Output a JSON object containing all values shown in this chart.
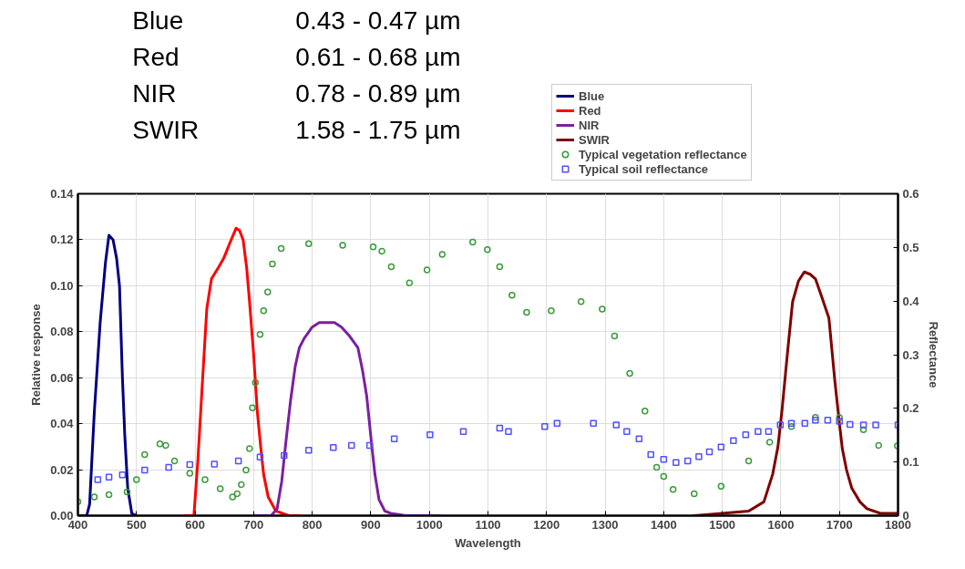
{
  "chart_data": {
    "type": "line",
    "annotations": [
      "Blue 0.43 - 0.47 µm",
      "Red 0.61 - 0.68 µm",
      "NIR 0.78 - 0.89 µm",
      "SWIR 1.58 - 1.75 µm"
    ],
    "xlabel": "Wavelength",
    "ylabel": "Relative response",
    "y2label": "Reflectance",
    "xlim": [
      400,
      1800
    ],
    "xticks": [
      400,
      500,
      600,
      700,
      800,
      900,
      1000,
      1100,
      1200,
      1300,
      1400,
      1500,
      1600,
      1700,
      1800
    ],
    "ylim": [
      0,
      0.14
    ],
    "yticks": [
      {
        "value": 0,
        "label": "0.00"
      },
      0.02,
      0.04,
      0.06,
      0.08,
      {
        "value": 0.1,
        "label": "0.10"
      },
      0.12,
      0.14
    ],
    "y2lim": [
      0,
      0.6
    ],
    "y2ticks": [
      0,
      0.1,
      0.2,
      0.3,
      0.4,
      0.5,
      0.6
    ],
    "grid": true,
    "legend": "top right",
    "line_style": "solid",
    "series": [
      {
        "name": "Blue",
        "color": "#000080",
        "x": [
          400,
          415,
          420,
          428,
          438,
          447,
          453,
          460,
          466,
          471,
          476,
          480,
          485,
          492,
          500
        ],
        "values": [
          0,
          0,
          0.005,
          0.045,
          0.084,
          0.11,
          0.122,
          0.12,
          0.112,
          0.1,
          0.06,
          0.035,
          0.012,
          0.001,
          0
        ]
      },
      {
        "name": "Red",
        "color": "#ff0000",
        "x": [
          580,
          598,
          605,
          613,
          620,
          628,
          640,
          649,
          660,
          670,
          676,
          682,
          688,
          693,
          700,
          706,
          712,
          717,
          725,
          738,
          760,
          780
        ],
        "values": [
          0,
          0,
          0.025,
          0.06,
          0.09,
          0.103,
          0.108,
          0.112,
          0.119,
          0.125,
          0.124,
          0.12,
          0.108,
          0.093,
          0.07,
          0.046,
          0.03,
          0.018,
          0.008,
          0.002,
          0,
          0
        ]
      },
      {
        "name": "NIR",
        "color": "#7b1fa2",
        "x": [
          700,
          730,
          740,
          748,
          755,
          763,
          771,
          778,
          786,
          800,
          812,
          825,
          838,
          850,
          864,
          878,
          886,
          893,
          901,
          907,
          914,
          924,
          934,
          960,
          1020
        ],
        "values": [
          0,
          0,
          0.003,
          0.015,
          0.032,
          0.05,
          0.065,
          0.073,
          0.077,
          0.082,
          0.084,
          0.084,
          0.084,
          0.082,
          0.078,
          0.073,
          0.063,
          0.052,
          0.032,
          0.018,
          0.007,
          0.002,
          0.001,
          0,
          0
        ]
      },
      {
        "name": "SWIR",
        "color": "#7f0000",
        "x": [
          1450,
          1500,
          1545,
          1571,
          1586,
          1595,
          1602,
          1611,
          1620,
          1630,
          1640,
          1650,
          1659,
          1670,
          1682,
          1692,
          1700,
          1705,
          1712,
          1721,
          1735,
          1747,
          1770,
          1800
        ],
        "values": [
          0,
          0.001,
          0.002,
          0.006,
          0.018,
          0.03,
          0.046,
          0.07,
          0.093,
          0.102,
          0.106,
          0.105,
          0.103,
          0.095,
          0.086,
          0.059,
          0.04,
          0.029,
          0.02,
          0.012,
          0.006,
          0.003,
          0.001,
          0.001
        ]
      },
      {
        "name": "Typical vegetation reflectance",
        "type": "scatter",
        "marker": "circle",
        "axis": "y2",
        "color": "#3a9a3a",
        "x": [
          400,
          428,
          453,
          484,
          500,
          514,
          540,
          550,
          565,
          591,
          617,
          643,
          664,
          672,
          679,
          687,
          693,
          698,
          703,
          711,
          717,
          724,
          732,
          747,
          794,
          852,
          904,
          919,
          935,
          966,
          996,
          1022,
          1074,
          1099,
          1120,
          1141,
          1166,
          1208,
          1259,
          1295,
          1316,
          1342,
          1368,
          1388,
          1400,
          1416,
          1452,
          1498,
          1545,
          1581,
          1618,
          1659,
          1700,
          1741,
          1767,
          1799
        ],
        "values": [
          0.026,
          0.035,
          0.039,
          0.044,
          0.067,
          0.114,
          0.134,
          0.131,
          0.102,
          0.079,
          0.067,
          0.05,
          0.035,
          0.041,
          0.058,
          0.085,
          0.125,
          0.201,
          0.248,
          0.338,
          0.382,
          0.417,
          0.469,
          0.498,
          0.507,
          0.504,
          0.501,
          0.493,
          0.464,
          0.434,
          0.458,
          0.487,
          0.51,
          0.496,
          0.464,
          0.411,
          0.379,
          0.382,
          0.399,
          0.385,
          0.335,
          0.265,
          0.195,
          0.09,
          0.073,
          0.049,
          0.041,
          0.055,
          0.102,
          0.137,
          0.166,
          0.183,
          0.183,
          0.16,
          0.131,
          0.13
        ]
      },
      {
        "name": "Typical soil reflectance",
        "type": "scatter",
        "marker": "square",
        "axis": "y2",
        "color": "#5050ff",
        "x": [
          434,
          453,
          476,
          514,
          555,
          591,
          633,
          674,
          711,
          752,
          794,
          836,
          867,
          898,
          940,
          1001,
          1058,
          1120,
          1135,
          1197,
          1218,
          1280,
          1319,
          1337,
          1358,
          1378,
          1400,
          1421,
          1441,
          1460,
          1478,
          1498,
          1519,
          1540,
          1561,
          1579,
          1599,
          1618,
          1641,
          1659,
          1680,
          1700,
          1718,
          1741,
          1762,
          1800
        ],
        "values": [
          0.067,
          0.072,
          0.076,
          0.085,
          0.09,
          0.095,
          0.096,
          0.102,
          0.109,
          0.112,
          0.122,
          0.127,
          0.131,
          0.131,
          0.143,
          0.151,
          0.157,
          0.163,
          0.157,
          0.166,
          0.172,
          0.172,
          0.169,
          0.157,
          0.143,
          0.114,
          0.105,
          0.099,
          0.102,
          0.11,
          0.119,
          0.128,
          0.14,
          0.151,
          0.157,
          0.157,
          0.169,
          0.172,
          0.172,
          0.178,
          0.178,
          0.176,
          0.17,
          0.169,
          0.169,
          0.169
        ]
      }
    ]
  }
}
